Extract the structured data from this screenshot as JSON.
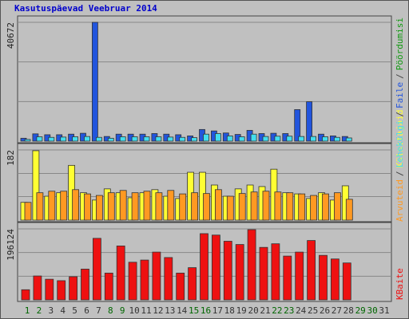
{
  "chart_data": {
    "type": "bar",
    "title": "Kasutuspäevad Veebruar 2014",
    "separator": "/",
    "categories": [
      "1",
      "2",
      "3",
      "4",
      "5",
      "6",
      "7",
      "8",
      "9",
      "10",
      "11",
      "12",
      "13",
      "14",
      "15",
      "16",
      "17",
      "18",
      "19",
      "20",
      "21",
      "22",
      "23",
      "24",
      "25",
      "26",
      "27",
      "28",
      "29",
      "30",
      "31"
    ],
    "category_colors": [
      "#006600",
      "#006600",
      "#333333",
      "#333333",
      "#333333",
      "#333333",
      "#333333",
      "#006600",
      "#006600",
      "#333333",
      "#333333",
      "#333333",
      "#333333",
      "#333333",
      "#006600",
      "#006600",
      "#333333",
      "#333333",
      "#333333",
      "#333333",
      "#333333",
      "#006600",
      "#006600",
      "#333333",
      "#333333",
      "#333333",
      "#333333",
      "#333333",
      "#006600",
      "#006600",
      "#333333"
    ],
    "panels": [
      {
        "ylim": [
          0,
          40672
        ],
        "yticks": [
          40672
        ],
        "grid_lines": [
          13557,
          27115
        ]
      },
      {
        "ylim": [
          0,
          182
        ],
        "yticks": [
          182
        ],
        "grid_lines": [
          61,
          121
        ]
      },
      {
        "ylim": [
          0,
          196124
        ],
        "yticks": [
          196124
        ],
        "grid_lines": [
          65375,
          130749
        ]
      }
    ],
    "series": [
      {
        "name": "Faile",
        "color": "#2255dd",
        "panel": 0,
        "values": [
          1000,
          2500,
          2200,
          2200,
          2400,
          2700,
          40672,
          1600,
          2400,
          2400,
          2400,
          2600,
          2400,
          2200,
          1800,
          4000,
          3500,
          2800,
          2300,
          3700,
          2600,
          2700,
          2600,
          10800,
          13500,
          2400,
          1800,
          1600,
          null,
          null,
          null
        ]
      },
      {
        "name": "Lehekülgi",
        "color": "#44ddee",
        "panel": 0,
        "values": [
          600,
          1500,
          1300,
          1400,
          1500,
          1600,
          1300,
          1000,
          1500,
          1500,
          1500,
          1500,
          1400,
          1300,
          1200,
          2400,
          2600,
          1800,
          1500,
          2400,
          1600,
          1700,
          1700,
          1600,
          1600,
          1500,
          1300,
          1100,
          null,
          null,
          null
        ]
      },
      {
        "name": "Külastajaid",
        "color": "#ffff33",
        "panel": 1,
        "values": [
          46,
          180,
          62,
          71,
          142,
          71,
          52,
          81,
          71,
          58,
          71,
          79,
          62,
          56,
          124,
          124,
          91,
          62,
          81,
          91,
          87,
          132,
          71,
          68,
          56,
          71,
          52,
          89,
          null,
          null,
          null
        ]
      },
      {
        "name": "Arvuteid",
        "color": "#ff9922",
        "panel": 1,
        "values": [
          46,
          71,
          75,
          75,
          79,
          68,
          64,
          71,
          77,
          71,
          75,
          71,
          77,
          68,
          71,
          69,
          79,
          62,
          69,
          73,
          75,
          73,
          71,
          68,
          64,
          68,
          71,
          54,
          null,
          null,
          null
        ]
      },
      {
        "name": "KBaite",
        "color": "#ee1111",
        "panel": 2,
        "values": [
          28000,
          66000,
          57000,
          53000,
          64000,
          85000,
          170000,
          74000,
          149000,
          104000,
          110000,
          132000,
          117000,
          74000,
          89000,
          183000,
          179000,
          162000,
          153000,
          194000,
          145000,
          155000,
          121000,
          132000,
          164000,
          123000,
          113000,
          102000,
          null,
          null,
          null
        ]
      }
    ],
    "extra_labels": [
      {
        "text": "Pöördumisi",
        "color": "#119911"
      }
    ]
  }
}
